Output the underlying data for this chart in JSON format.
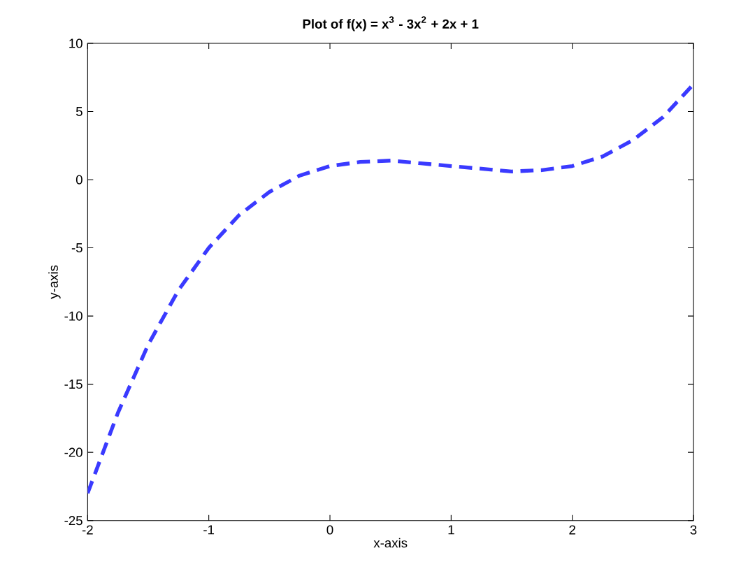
{
  "chart_data": {
    "type": "line",
    "title": "Plot of f(x) = x$^{3}$ - 3x$^{2}$ + 2x + 1",
    "xlabel": "x-axis",
    "ylabel": "y-axis",
    "x": [
      -2,
      -1.75,
      -1.5,
      -1.25,
      -1,
      -0.75,
      -0.5,
      -0.25,
      0,
      0.25,
      0.5,
      0.75,
      1,
      1.25,
      1.5,
      1.75,
      2,
      2.25,
      2.5,
      2.75,
      3
    ],
    "series": [
      {
        "color": "#3a3aff",
        "values": [
          -23,
          -17.1,
          -12.1,
          -8.1,
          -5,
          -2.6,
          -0.9,
          0.3,
          1,
          1.3,
          1.4,
          1.2,
          1,
          0.8,
          0.6,
          0.7,
          1,
          1.7,
          2.9,
          4.6,
          7
        ]
      }
    ],
    "xlim": [
      -2,
      3
    ],
    "ylim": [
      -25,
      10
    ],
    "xticks": [
      -2,
      -1,
      0,
      1,
      2,
      3
    ],
    "yticks": [
      -25,
      -20,
      -15,
      -10,
      -5,
      0,
      5,
      10
    ],
    "line_style": "dashed",
    "marker": "none"
  }
}
